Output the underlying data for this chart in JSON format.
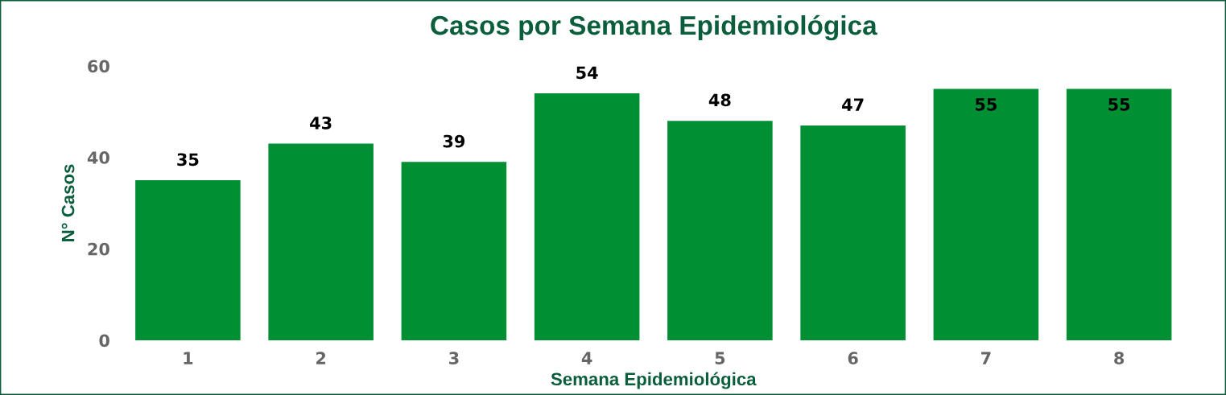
{
  "chart_data": {
    "type": "bar",
    "title": "Casos por Semana Epidemiológica",
    "xlabel": "Semana Epidemiológica",
    "ylabel": "N° Casos",
    "categories": [
      "1",
      "2",
      "3",
      "4",
      "5",
      "6",
      "7",
      "8"
    ],
    "values": [
      35,
      43,
      39,
      54,
      48,
      47,
      55,
      55
    ],
    "color": "#008f33",
    "ylim": [
      0,
      60
    ],
    "yticks": [
      0,
      20,
      40,
      60
    ],
    "grid": false,
    "data_labels": true
  }
}
